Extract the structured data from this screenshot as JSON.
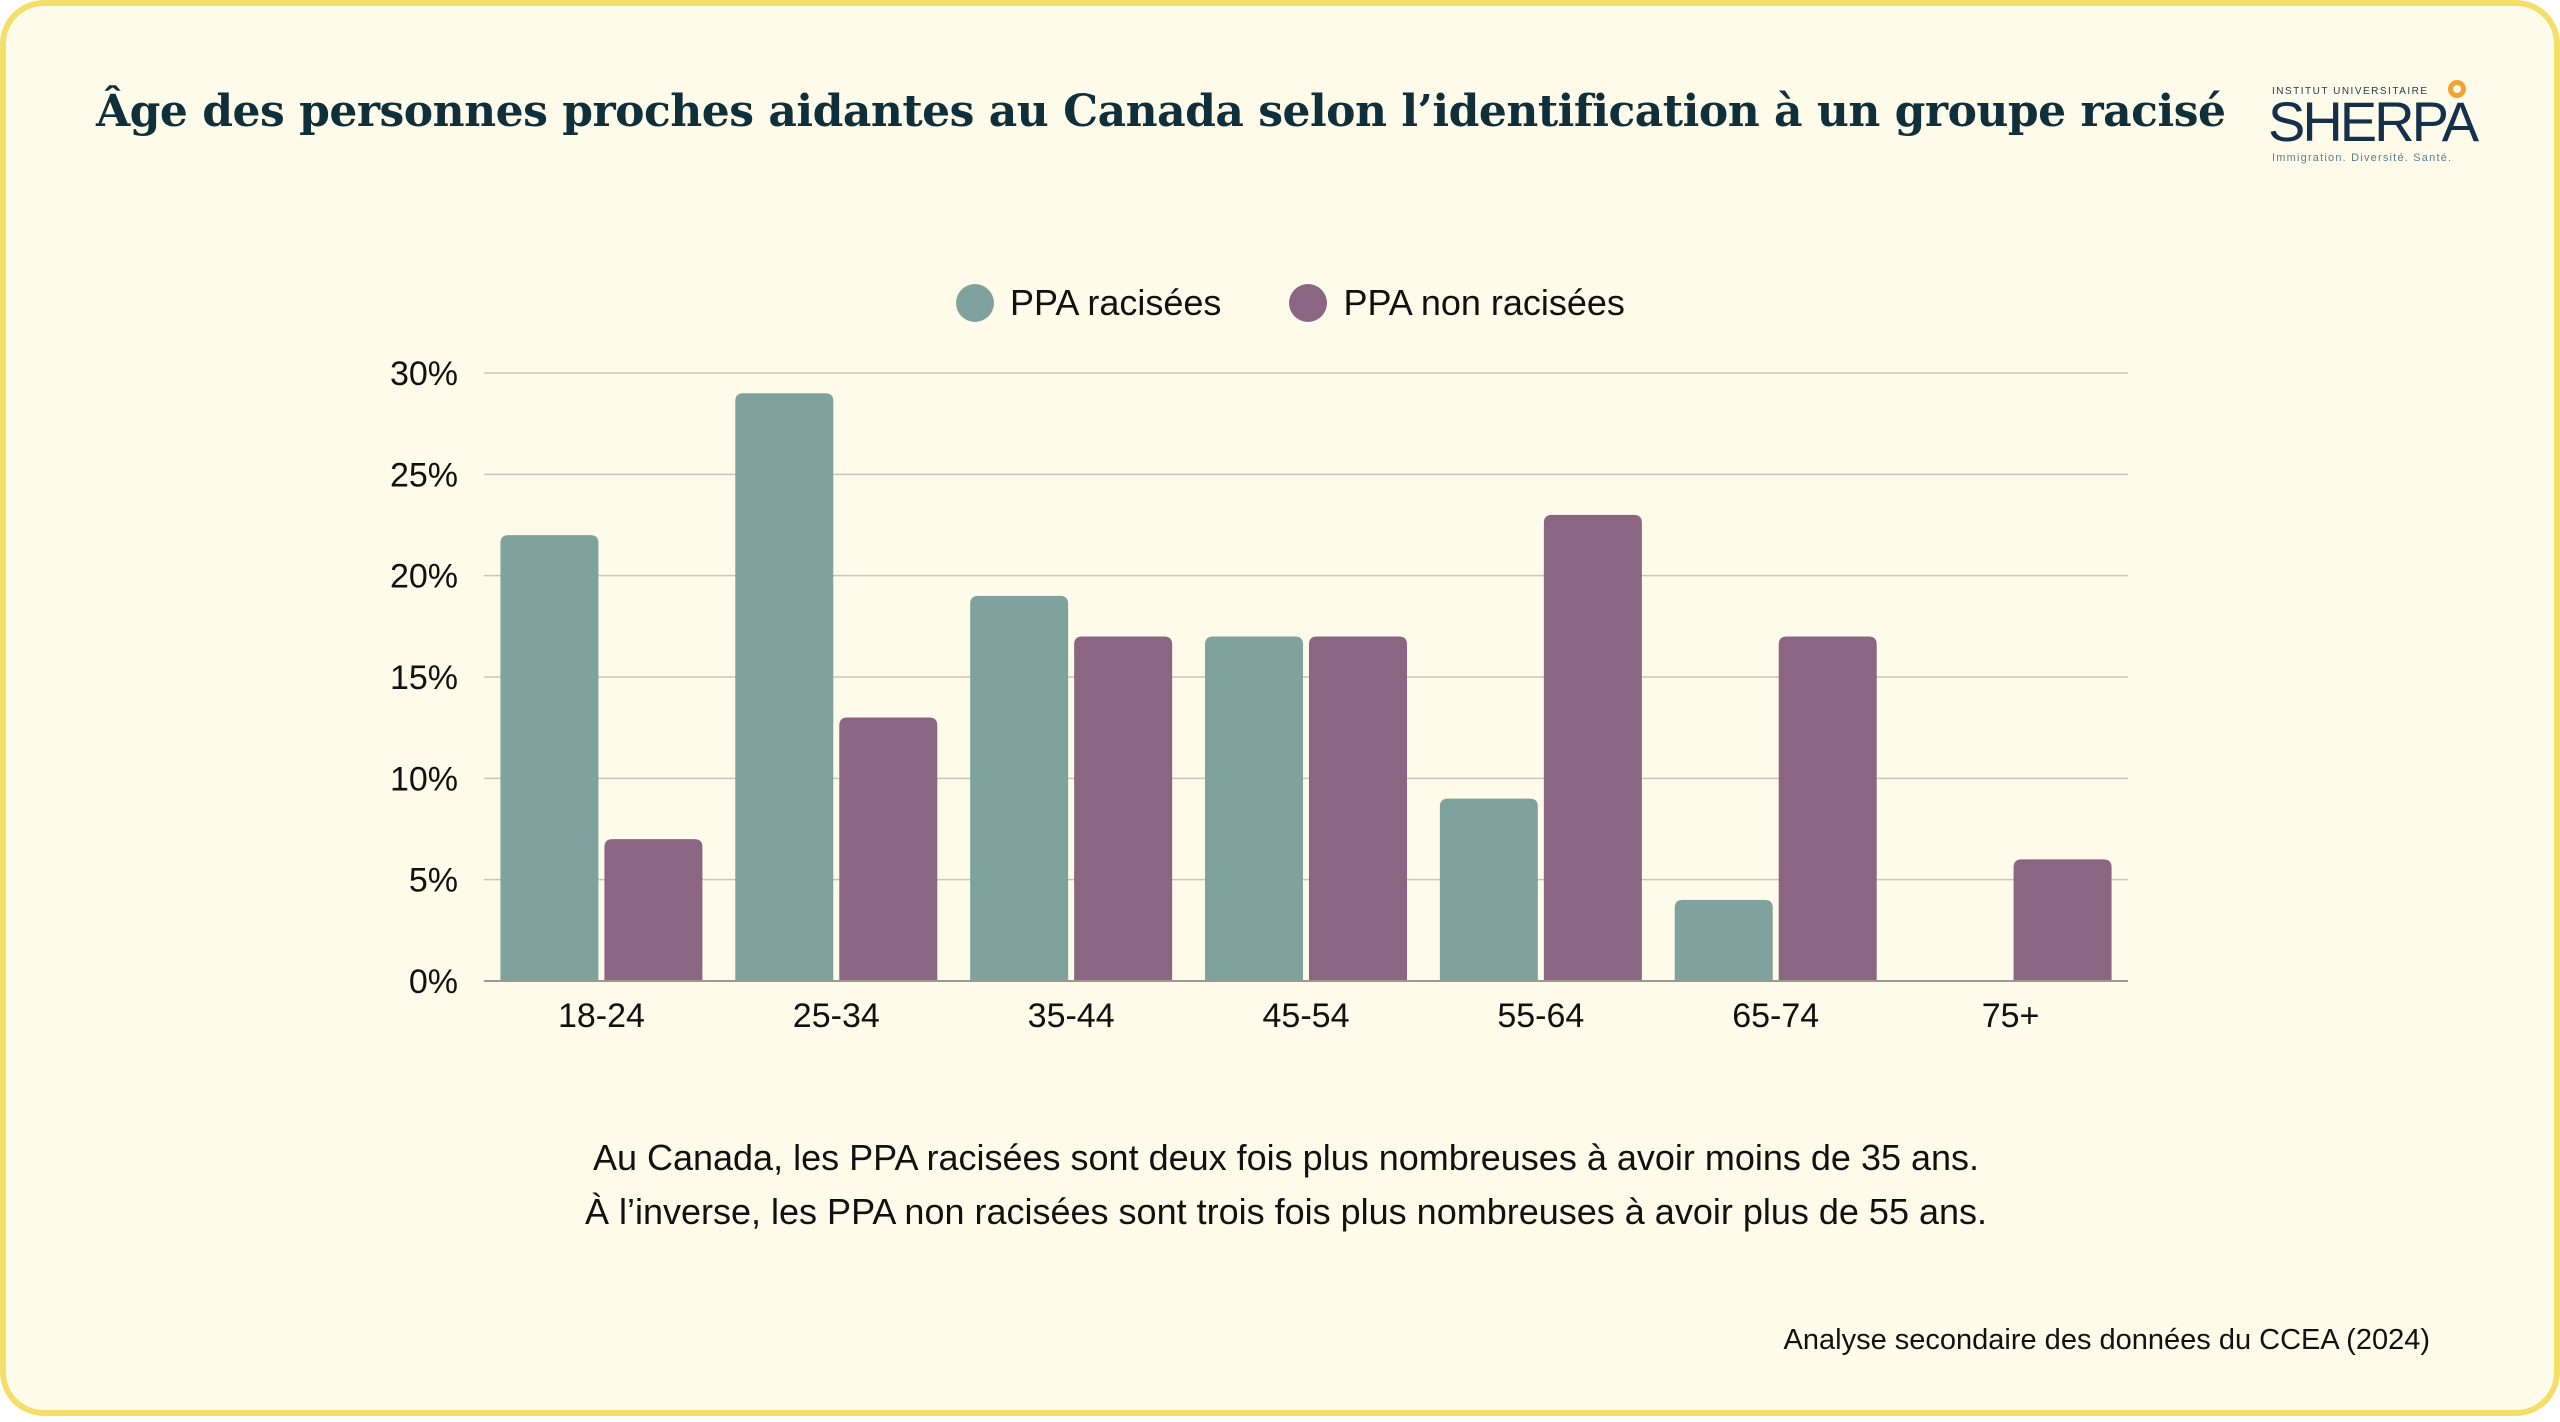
{
  "title": "Âge des personnes proches aidantes au Canada selon l’identification à un groupe racisé",
  "logo": {
    "top": "INSTITUT UNIVERSITAIRE",
    "word": "SHERPA",
    "tagline": "Immigration. Diversité. Santé."
  },
  "chart_data": {
    "type": "bar",
    "categories": [
      "18-24",
      "25-34",
      "35-44",
      "45-54",
      "55-64",
      "65-74",
      "75+"
    ],
    "series": [
      {
        "name": "PPA racisées",
        "color": "#7fa39c",
        "values": [
          22,
          29,
          19,
          17,
          9,
          4,
          0
        ]
      },
      {
        "name": "PPA non racisées",
        "color": "#8b6682",
        "values": [
          7,
          13,
          17,
          17,
          23,
          17,
          6
        ]
      }
    ],
    "ylim": [
      0,
      30
    ],
    "yticks": [
      "0%",
      "5%",
      "10%",
      "15%",
      "20%",
      "25%",
      "30%"
    ],
    "grid": true,
    "legend": "top"
  },
  "notes": [
    "Au Canada, les PPA racisées sont deux fois plus nombreuses à avoir moins de 35 ans.",
    "À l’inverse, les PPA non racisées sont trois fois plus nombreuses à avoir plus de 55 ans."
  ],
  "source": "Analyse secondaire des données du CCEA (2024)"
}
